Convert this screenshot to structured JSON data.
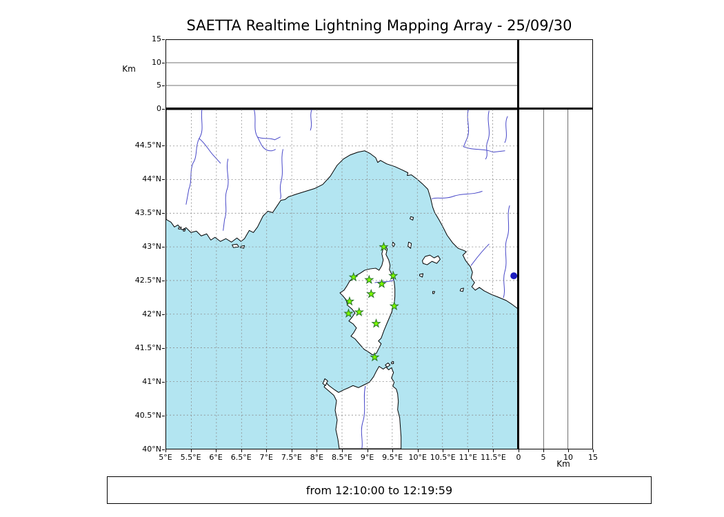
{
  "title": "SAETTA Realtime Lightning Mapping Array - 25/09/30",
  "time_range": "from 12:10:00 to 12:19:59",
  "axes": {
    "alt_label": "Km",
    "lon_ticks": {
      "values": [
        5,
        5.5,
        6,
        6.5,
        7,
        7.5,
        8,
        8.5,
        9,
        9.5,
        10,
        10.5,
        11,
        11.5
      ],
      "labels": [
        "5°E",
        "5.5°E",
        "6°E",
        "6.5°E",
        "7°E",
        "7.5°E",
        "8°E",
        "8.5°E",
        "9°E",
        "9.5°E",
        "10°E",
        "10.5°E",
        "11°E",
        "11.5°E"
      ]
    },
    "lat_ticks": {
      "values": [
        40,
        40.5,
        41,
        41.5,
        42,
        42.5,
        43,
        43.5,
        44,
        44.5
      ],
      "labels": [
        "40°N",
        "40.5°N",
        "41°N",
        "41.5°N",
        "42°N",
        "42.5°N",
        "43°N",
        "43.5°N",
        "44°N",
        "44.5°N"
      ]
    },
    "alt_ticks": {
      "values": [
        0,
        5,
        10,
        15
      ],
      "labels": [
        "0",
        "5",
        "10",
        "15"
      ]
    },
    "alt_gridlines": [
      5,
      10
    ]
  },
  "chart_data": {
    "type": "scatter",
    "title": "SAETTA Realtime Lightning Mapping Array - 25/09/30",
    "description": "Realtime lightning mapping array display: plan-view map of the Corsica / NW Mediterranean region with LMA station markers, a longitude-altitude panel on top and a latitude-altitude panel on the right, altitude axes 0-15 km.",
    "geo": {
      "lon_range": [
        5,
        12
      ],
      "lat_range": [
        40,
        45.04
      ]
    },
    "alt_range_km": [
      0,
      15
    ],
    "stations": [
      {
        "lon": 9.33,
        "lat": 43.0
      },
      {
        "lon": 8.73,
        "lat": 42.55
      },
      {
        "lon": 9.04,
        "lat": 42.51
      },
      {
        "lon": 9.52,
        "lat": 42.57
      },
      {
        "lon": 9.29,
        "lat": 42.45
      },
      {
        "lon": 9.08,
        "lat": 42.3
      },
      {
        "lon": 8.65,
        "lat": 42.19
      },
      {
        "lon": 9.54,
        "lat": 42.12
      },
      {
        "lon": 8.63,
        "lat": 42.01
      },
      {
        "lon": 8.84,
        "lat": 42.03
      },
      {
        "lon": 9.18,
        "lat": 41.86
      },
      {
        "lon": 9.15,
        "lat": 41.36
      }
    ],
    "source_points": [
      {
        "lon": 11.92,
        "lat": 42.57
      }
    ]
  },
  "colors": {
    "sea": "#b3e5f1",
    "land": "#ffffff",
    "coast": "#000000",
    "river": "#4646c8",
    "grid": "#8c8c8c",
    "station_fill": "#7cfc00",
    "station_edge": "#267326",
    "source": "#1c1cbe"
  }
}
